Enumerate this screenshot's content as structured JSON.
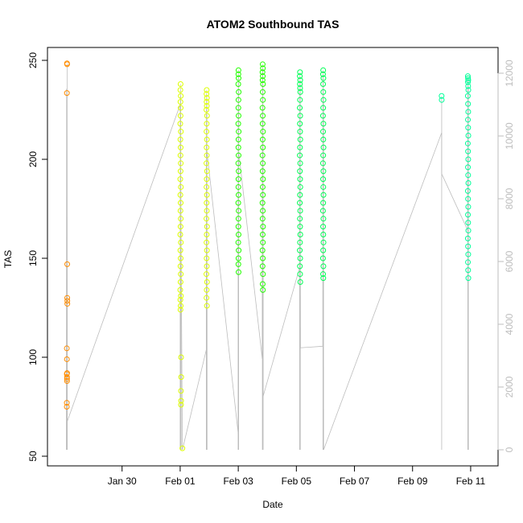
{
  "chart_data": {
    "type": "scatter",
    "title": "ATOM2 Southbound TAS",
    "xlabel": "Date",
    "ylabel": "TAS",
    "xlim": [
      "2016-01-27T21:00",
      "2016-02-11T12:00"
    ],
    "ylim": [
      50,
      250
    ],
    "y2lim": [
      0,
      12000
    ],
    "x_ticks": [
      "Jan 30",
      "Feb 01",
      "Feb 03",
      "Feb 05",
      "Feb 07",
      "Feb 09",
      "Feb 11"
    ],
    "x_tick_dates": [
      "2016-01-30",
      "2016-02-01",
      "2016-02-03",
      "2016-02-05",
      "2016-02-07",
      "2016-02-09",
      "2016-02-11"
    ],
    "y_ticks": [
      "50",
      "100",
      "150",
      "200",
      "250"
    ],
    "y2_ticks": [
      "0",
      "2000",
      "4000",
      "6000",
      "8000",
      "10000",
      "12000"
    ],
    "colors": {
      "line": "#bdbdbd",
      "right_axis": "#bdbdbd"
    },
    "series": [
      {
        "color": "#ff8c00",
        "tas": [
          248.5,
          248,
          233.5,
          147,
          130,
          128.5,
          127,
          104.5,
          99,
          91.5,
          90,
          89,
          77,
          75,
          88,
          92
        ],
        "x": [
          "2016-01-28T02:30",
          "2016-01-28T02:35",
          "2016-01-28T02:25",
          "2016-01-28T02:40",
          "2016-01-28T02:40",
          "2016-01-28T02:45",
          "2016-01-28T02:45",
          "2016-01-28T02:20",
          "2016-01-28T02:25",
          "2016-01-28T02:20",
          "2016-01-28T02:30",
          "2016-01-28T02:30",
          "2016-01-28T02:20",
          "2016-01-28T02:20",
          "2016-01-28T02:30",
          "2016-01-28T02:35"
        ],
        "altitude": [
          {
            "x": "2016-01-28T02:00",
            "alt": 0
          },
          {
            "x": "2016-01-28T02:10",
            "alt": 11500
          },
          {
            "x": "2016-01-28T02:20",
            "alt": 11400
          },
          {
            "x": "2016-01-28T02:30",
            "alt": 11300
          },
          {
            "x": "2016-01-28T02:40",
            "alt": 900
          }
        ]
      },
      {
        "color": "#ddff00",
        "tas": [
          238,
          235,
          232,
          229,
          226,
          222,
          218,
          214,
          210,
          206,
          202,
          198,
          194,
          190,
          186,
          182,
          178,
          174,
          170,
          166,
          162,
          158,
          154,
          150,
          146,
          142,
          138,
          134,
          131,
          129,
          126,
          124,
          100,
          90,
          83,
          78,
          76,
          54,
          235,
          233,
          231,
          229,
          227,
          225,
          222,
          218,
          214,
          210,
          206,
          202,
          198,
          194,
          190,
          186,
          182,
          178,
          174,
          170,
          166,
          162,
          158,
          154,
          150,
          146,
          142,
          138,
          134,
          130,
          126
        ],
        "x": [
          "2016-02-01T00:20",
          "2016-02-01T00:10",
          "2016-02-01T00:30",
          "2016-02-01T00:15",
          "2016-02-01T00:25",
          "2016-02-01T00:20",
          "2016-02-01T00:05",
          "2016-02-01T00:35",
          "2016-02-01T00:10",
          "2016-02-01T00:25",
          "2016-02-01T00:15",
          "2016-02-01T00:30",
          "2016-02-01T00:20",
          "2016-02-01T00:05",
          "2016-02-01T00:35",
          "2016-02-01T00:10",
          "2016-02-01T00:25",
          "2016-02-01T00:15",
          "2016-02-01T00:30",
          "2016-02-01T00:20",
          "2016-02-01T00:05",
          "2016-02-01T00:35",
          "2016-02-01T00:10",
          "2016-02-01T00:25",
          "2016-02-01T00:15",
          "2016-02-01T00:30",
          "2016-02-01T00:20",
          "2016-02-01T00:05",
          "2016-02-01T00:35",
          "2016-02-01T00:10",
          "2016-02-01T00:25",
          "2016-02-01T00:15",
          "2016-02-01T00:45",
          "2016-02-01T00:50",
          "2016-02-01T00:40",
          "2016-02-01T00:45",
          "2016-02-01T00:40",
          "2016-02-01T01:50",
          "2016-02-01T21:55",
          "2016-02-01T21:45",
          "2016-02-01T22:05",
          "2016-02-01T21:50",
          "2016-02-01T22:00",
          "2016-02-01T21:40",
          "2016-02-01T22:10",
          "2016-02-01T21:55",
          "2016-02-01T21:45",
          "2016-02-01T22:05",
          "2016-02-01T21:50",
          "2016-02-01T22:00",
          "2016-02-01T21:40",
          "2016-02-01T22:10",
          "2016-02-01T21:55",
          "2016-02-01T21:45",
          "2016-02-01T22:05",
          "2016-02-01T21:50",
          "2016-02-01T22:00",
          "2016-02-01T21:40",
          "2016-02-01T22:10",
          "2016-02-01T21:55",
          "2016-02-01T21:45",
          "2016-02-01T22:05",
          "2016-02-01T21:50",
          "2016-02-01T22:00",
          "2016-02-01T21:40",
          "2016-02-01T22:10",
          "2016-02-01T21:55",
          "2016-02-01T21:45",
          "2016-02-01T22:05"
        ],
        "altitude": [
          {
            "x": "2016-02-01T00:00",
            "alt": 11000
          },
          {
            "x": "2016-02-01T00:10",
            "alt": 9500
          },
          {
            "x": "2016-02-01T00:20",
            "alt": 9200
          },
          {
            "x": "2016-02-01T01:50",
            "alt": 0
          },
          {
            "x": "2016-02-01T21:40",
            "alt": 3200
          },
          {
            "x": "2016-02-01T22:00",
            "alt": 9000
          },
          {
            "x": "2016-02-01T22:10",
            "alt": 9500
          }
        ]
      },
      {
        "color": "#22ff00",
        "tas": [
          245,
          243,
          241,
          238,
          234,
          230,
          226,
          222,
          218,
          214,
          210,
          206,
          202,
          198,
          194,
          190,
          186,
          182,
          178,
          174,
          170,
          166,
          162,
          158,
          154,
          150,
          147,
          143,
          248,
          246,
          244,
          242,
          240,
          238,
          234,
          230,
          226,
          222,
          218,
          214,
          210,
          206,
          202,
          198,
          194,
          190,
          186,
          182,
          178,
          174,
          170,
          166,
          162,
          158,
          154,
          150,
          146,
          142,
          137,
          134
        ],
        "x": [
          "2016-02-03T00:10",
          "2016-02-03T00:05",
          "2016-02-03T00:15",
          "2016-02-03T00:00",
          "2016-02-03T00:20",
          "2016-02-03T00:10",
          "2016-02-03T00:05",
          "2016-02-03T00:15",
          "2016-02-03T00:00",
          "2016-02-03T00:20",
          "2016-02-03T00:10",
          "2016-02-03T00:05",
          "2016-02-03T00:15",
          "2016-02-03T00:00",
          "2016-02-03T00:20",
          "2016-02-03T00:10",
          "2016-02-03T00:05",
          "2016-02-03T00:15",
          "2016-02-03T00:00",
          "2016-02-03T00:20",
          "2016-02-03T00:10",
          "2016-02-03T00:05",
          "2016-02-03T00:15",
          "2016-02-03T00:00",
          "2016-02-03T00:20",
          "2016-02-03T00:10",
          "2016-02-03T00:05",
          "2016-02-03T00:15",
          "2016-02-03T20:10",
          "2016-02-03T20:20",
          "2016-02-03T20:00",
          "2016-02-03T20:15",
          "2016-02-03T20:05",
          "2016-02-03T20:25",
          "2016-02-03T20:10",
          "2016-02-03T20:20",
          "2016-02-03T20:00",
          "2016-02-03T20:15",
          "2016-02-03T20:05",
          "2016-02-03T20:25",
          "2016-02-03T20:10",
          "2016-02-03T20:20",
          "2016-02-03T20:00",
          "2016-02-03T20:15",
          "2016-02-03T20:05",
          "2016-02-03T20:25",
          "2016-02-03T20:10",
          "2016-02-03T20:20",
          "2016-02-03T20:00",
          "2016-02-03T20:15",
          "2016-02-03T20:05",
          "2016-02-03T20:25",
          "2016-02-03T20:10",
          "2016-02-03T20:20",
          "2016-02-03T20:00",
          "2016-02-03T20:15",
          "2016-02-03T20:05",
          "2016-02-03T20:25",
          "2016-02-03T20:10",
          "2016-02-03T20:20"
        ],
        "altitude": [
          {
            "x": "2016-02-03T00:00",
            "alt": 500
          },
          {
            "x": "2016-02-03T00:10",
            "alt": 11000
          },
          {
            "x": "2016-02-03T00:20",
            "alt": 9500
          },
          {
            "x": "2016-02-03T19:50",
            "alt": 2900
          },
          {
            "x": "2016-02-03T20:00",
            "alt": 10800
          },
          {
            "x": "2016-02-03T20:20",
            "alt": 10500
          },
          {
            "x": "2016-02-03T20:30",
            "alt": 1700
          }
        ]
      },
      {
        "color": "#00ff55",
        "tas": [
          244,
          242,
          240,
          238,
          236,
          234,
          230,
          226,
          222,
          218,
          214,
          210,
          206,
          202,
          198,
          194,
          190,
          186,
          182,
          178,
          174,
          170,
          166,
          162,
          158,
          154,
          150,
          146,
          142,
          138,
          245,
          243,
          241,
          238,
          234,
          230,
          226,
          222,
          218,
          214,
          210,
          206,
          202,
          198,
          194,
          190,
          186,
          182,
          178,
          174,
          170,
          166,
          162,
          158,
          154,
          150,
          146,
          142,
          140
        ],
        "x": [
          "2016-02-05T03:00",
          "2016-02-05T02:50",
          "2016-02-05T03:10",
          "2016-02-05T02:55",
          "2016-02-05T03:05",
          "2016-02-05T03:15",
          "2016-02-05T03:00",
          "2016-02-05T02:50",
          "2016-02-05T03:10",
          "2016-02-05T02:55",
          "2016-02-05T03:05",
          "2016-02-05T03:15",
          "2016-02-05T03:00",
          "2016-02-05T02:50",
          "2016-02-05T03:10",
          "2016-02-05T02:55",
          "2016-02-05T03:05",
          "2016-02-05T03:15",
          "2016-02-05T03:00",
          "2016-02-05T02:50",
          "2016-02-05T03:10",
          "2016-02-05T02:55",
          "2016-02-05T03:05",
          "2016-02-05T03:15",
          "2016-02-05T03:00",
          "2016-02-05T02:50",
          "2016-02-05T03:10",
          "2016-02-05T02:55",
          "2016-02-05T03:05",
          "2016-02-05T03:15",
          "2016-02-05T22:10",
          "2016-02-05T22:00",
          "2016-02-05T22:20",
          "2016-02-05T22:05",
          "2016-02-05T22:15",
          "2016-02-05T22:25",
          "2016-02-05T22:10",
          "2016-02-05T22:00",
          "2016-02-05T22:20",
          "2016-02-05T22:05",
          "2016-02-05T22:15",
          "2016-02-05T22:25",
          "2016-02-05T22:10",
          "2016-02-05T22:00",
          "2016-02-05T22:20",
          "2016-02-05T22:05",
          "2016-02-05T22:15",
          "2016-02-05T22:25",
          "2016-02-05T22:10",
          "2016-02-05T22:00",
          "2016-02-05T22:20",
          "2016-02-05T22:05",
          "2016-02-05T22:15",
          "2016-02-05T22:25",
          "2016-02-05T22:10",
          "2016-02-05T22:00",
          "2016-02-05T22:20",
          "2016-02-05T22:05",
          "2016-02-05T22:15"
        ],
        "altitude": [
          {
            "x": "2016-02-05T02:40",
            "alt": 5800
          },
          {
            "x": "2016-02-05T03:00",
            "alt": 11300
          },
          {
            "x": "2016-02-05T03:20",
            "alt": 3250
          },
          {
            "x": "2016-02-05T21:50",
            "alt": 3300
          },
          {
            "x": "2016-02-05T22:00",
            "alt": 11200
          },
          {
            "x": "2016-02-05T22:20",
            "alt": 11000
          },
          {
            "x": "2016-02-05T22:30",
            "alt": 0
          }
        ]
      },
      {
        "color": "#00ff99",
        "tas": [
          232,
          230,
          242,
          241,
          240,
          239,
          237,
          235,
          232,
          228,
          224,
          220,
          216,
          212,
          208,
          204,
          200,
          196,
          192,
          188,
          184,
          180,
          176,
          172,
          168,
          164,
          160,
          156,
          152,
          148,
          144,
          140
        ],
        "x": [
          "2016-02-10T00:00",
          "2016-02-10T00:05",
          "2016-02-10T21:40",
          "2016-02-10T21:50",
          "2016-02-10T22:00",
          "2016-02-10T21:45",
          "2016-02-10T21:55",
          "2016-02-10T22:05",
          "2016-02-10T21:40",
          "2016-02-10T21:50",
          "2016-02-10T22:00",
          "2016-02-10T21:45",
          "2016-02-10T21:55",
          "2016-02-10T22:05",
          "2016-02-10T21:40",
          "2016-02-10T21:50",
          "2016-02-10T22:00",
          "2016-02-10T21:45",
          "2016-02-10T21:55",
          "2016-02-10T22:05",
          "2016-02-10T21:40",
          "2016-02-10T21:50",
          "2016-02-10T22:00",
          "2016-02-10T21:45",
          "2016-02-10T21:55",
          "2016-02-10T22:05",
          "2016-02-10T21:40",
          "2016-02-10T21:50",
          "2016-02-10T22:00",
          "2016-02-10T21:45",
          "2016-02-10T21:55",
          "2016-02-10T22:05"
        ],
        "altitude": [
          {
            "x": "2016-02-10T00:00",
            "alt": 10100
          },
          {
            "x": "2016-02-10T00:00",
            "alt": 8800
          },
          {
            "x": "2016-02-10T21:30",
            "alt": 7000
          },
          {
            "x": "2016-02-10T21:40",
            "alt": 11200
          },
          {
            "x": "2016-02-10T22:00",
            "alt": 11000
          },
          {
            "x": "2016-02-10T22:10",
            "alt": 0
          }
        ]
      }
    ],
    "grid": false,
    "legend": "none"
  }
}
